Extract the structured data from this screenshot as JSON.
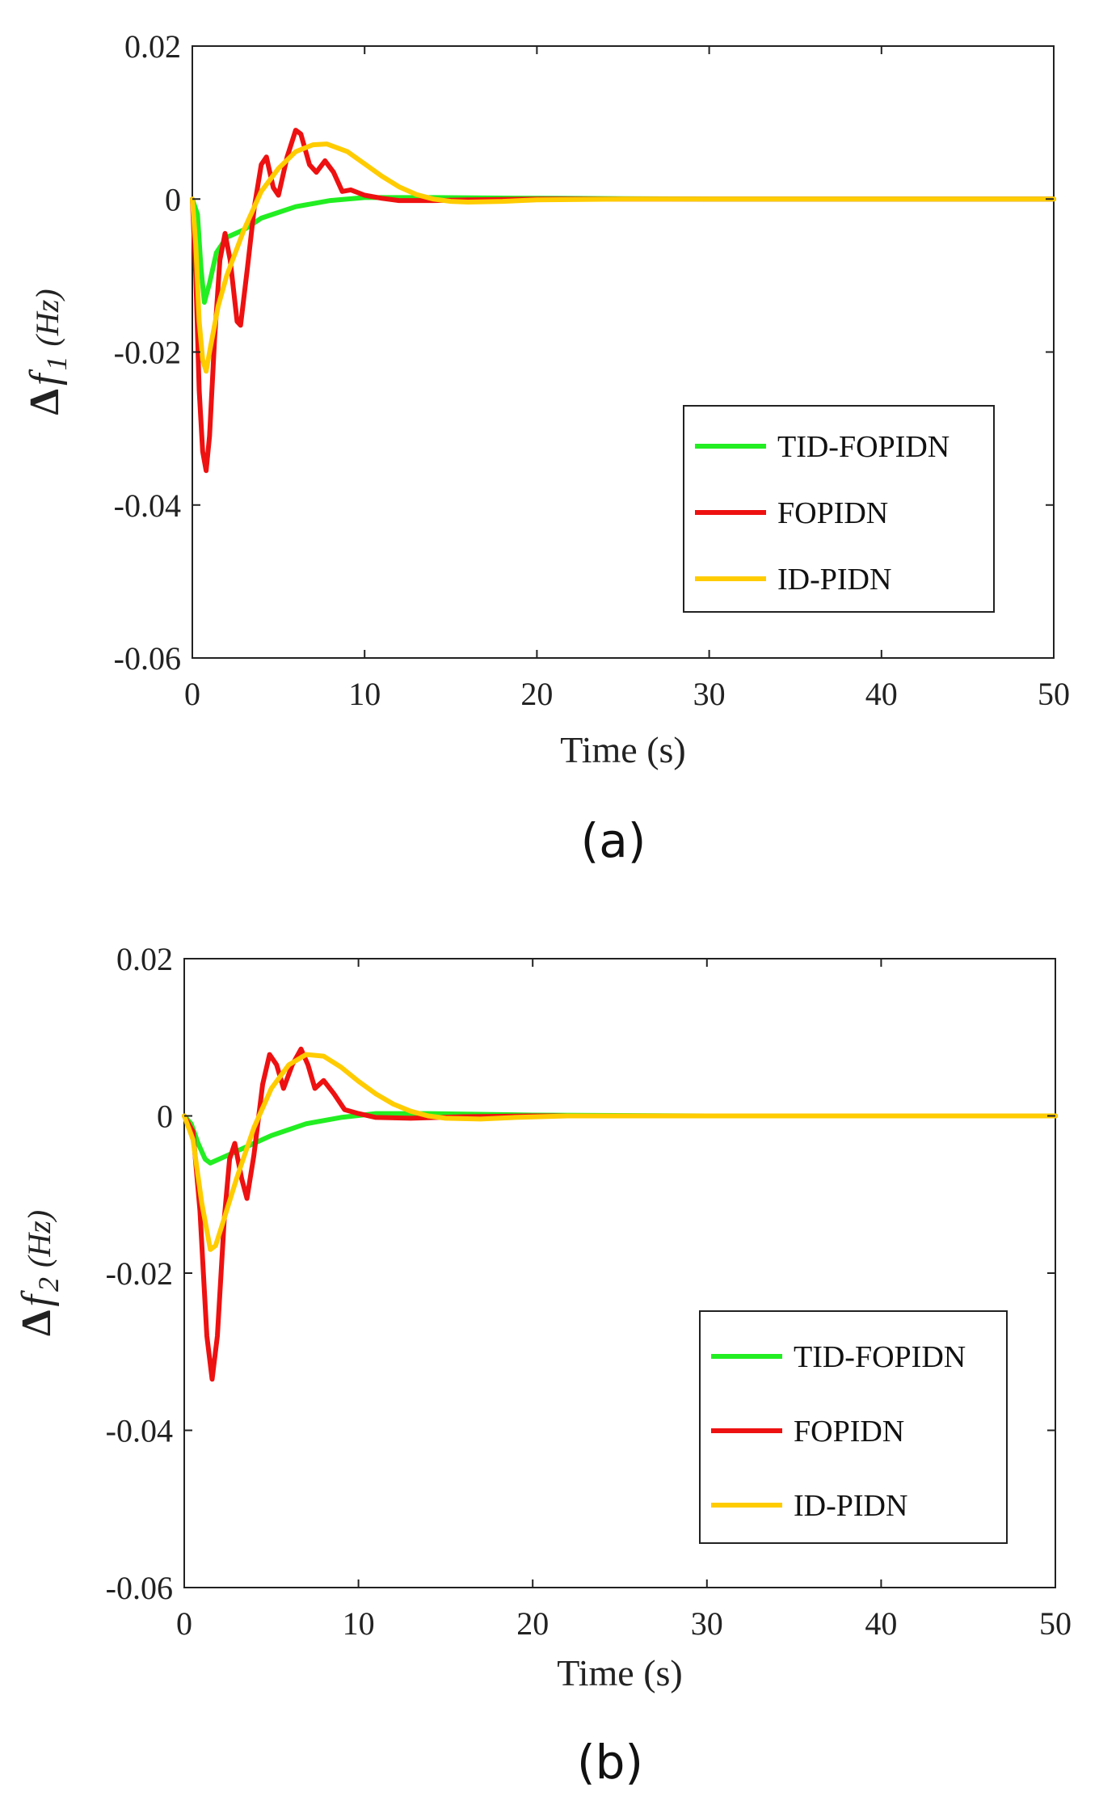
{
  "chart_data": [
    {
      "type": "line",
      "panel_label": "(a)",
      "xlabel": "Time (s)",
      "ylabel": {
        "delta": "Δ",
        "var": "f",
        "sub": "1",
        "unit": "(Hz)"
      },
      "xlim": [
        0,
        50
      ],
      "ylim": [
        -0.06,
        0.02
      ],
      "xticks": [
        0,
        10,
        20,
        30,
        40,
        50
      ],
      "xtick_labels": [
        "0",
        "10",
        "20",
        "30",
        "40",
        "50"
      ],
      "yticks": [
        0.02,
        0,
        -0.02,
        -0.04,
        -0.06
      ],
      "ytick_labels": [
        "0.02",
        "0",
        "-0.02",
        "-0.04",
        "-0.06"
      ],
      "grid": false,
      "legend_position": "right",
      "series": [
        {
          "name": "TID-FOPIDN",
          "color": "#22ee22",
          "points": [
            [
              0,
              0
            ],
            [
              0.3,
              -0.002
            ],
            [
              0.5,
              -0.009
            ],
            [
              0.7,
              -0.0135
            ],
            [
              1.0,
              -0.011
            ],
            [
              1.4,
              -0.007
            ],
            [
              2.0,
              -0.005
            ],
            [
              3.0,
              -0.004
            ],
            [
              4.0,
              -0.0025
            ],
            [
              6.0,
              -0.001
            ],
            [
              8.0,
              -0.0002
            ],
            [
              10.0,
              0.0002
            ],
            [
              14.0,
              0.0002
            ],
            [
              20.0,
              0.0001
            ],
            [
              30.0,
              0
            ],
            [
              40.0,
              0
            ],
            [
              50.0,
              0
            ]
          ]
        },
        {
          "name": "FOPIDN",
          "color": "#ee1111",
          "points": [
            [
              0,
              0
            ],
            [
              0.2,
              -0.01
            ],
            [
              0.4,
              -0.025
            ],
            [
              0.6,
              -0.033
            ],
            [
              0.8,
              -0.0355
            ],
            [
              1.0,
              -0.031
            ],
            [
              1.3,
              -0.018
            ],
            [
              1.6,
              -0.008
            ],
            [
              1.9,
              -0.0045
            ],
            [
              2.2,
              -0.008
            ],
            [
              2.6,
              -0.016
            ],
            [
              2.8,
              -0.0165
            ],
            [
              3.2,
              -0.009
            ],
            [
              3.6,
              -0.001
            ],
            [
              4.0,
              0.0045
            ],
            [
              4.3,
              0.0055
            ],
            [
              4.7,
              0.0015
            ],
            [
              5.0,
              0.0005
            ],
            [
              5.5,
              0.0055
            ],
            [
              6.0,
              0.009
            ],
            [
              6.3,
              0.0085
            ],
            [
              6.8,
              0.0045
            ],
            [
              7.2,
              0.0035
            ],
            [
              7.7,
              0.005
            ],
            [
              8.2,
              0.0035
            ],
            [
              8.7,
              0.001
            ],
            [
              9.2,
              0.0012
            ],
            [
              10.0,
              0.0005
            ],
            [
              11.0,
              0.0001
            ],
            [
              12.0,
              -0.0002
            ],
            [
              14.0,
              -0.0002
            ],
            [
              16.0,
              -0.0001
            ],
            [
              20.0,
              0
            ],
            [
              30.0,
              0
            ],
            [
              50.0,
              0
            ]
          ]
        },
        {
          "name": "ID-PIDN",
          "color": "#ffcc00",
          "points": [
            [
              0,
              0
            ],
            [
              0.2,
              -0.006
            ],
            [
              0.4,
              -0.016
            ],
            [
              0.6,
              -0.021
            ],
            [
              0.8,
              -0.0225
            ],
            [
              1.0,
              -0.02
            ],
            [
              1.5,
              -0.014
            ],
            [
              2.0,
              -0.01
            ],
            [
              3.0,
              -0.004
            ],
            [
              4.0,
              0.001
            ],
            [
              5.0,
              0.004
            ],
            [
              6.0,
              0.0062
            ],
            [
              7.0,
              0.0071
            ],
            [
              7.8,
              0.0072
            ],
            [
              9.0,
              0.0062
            ],
            [
              10.0,
              0.0046
            ],
            [
              11.0,
              0.003
            ],
            [
              12.0,
              0.0016
            ],
            [
              13.0,
              0.0006
            ],
            [
              14.0,
              0.0
            ],
            [
              15.0,
              -0.0003
            ],
            [
              16.0,
              -0.0004
            ],
            [
              18.0,
              -0.0003
            ],
            [
              20.0,
              -0.0001
            ],
            [
              25.0,
              0
            ],
            [
              50.0,
              0
            ]
          ]
        }
      ]
    },
    {
      "type": "line",
      "panel_label": "(b)",
      "xlabel": "Time (s)",
      "ylabel": {
        "delta": "Δ",
        "var": "f",
        "sub": "2",
        "unit": "(Hz)"
      },
      "xlim": [
        0,
        50
      ],
      "ylim": [
        -0.06,
        0.02
      ],
      "xticks": [
        0,
        10,
        20,
        30,
        40,
        50
      ],
      "xtick_labels": [
        "0",
        "10",
        "20",
        "30",
        "40",
        "50"
      ],
      "yticks": [
        0.02,
        0,
        -0.02,
        -0.04,
        -0.06
      ],
      "ytick_labels": [
        "0.02",
        "0",
        "-0.02",
        "-0.04",
        "-0.06"
      ],
      "grid": false,
      "legend_position": "right",
      "series": [
        {
          "name": "TID-FOPIDN",
          "color": "#22ee22",
          "points": [
            [
              0,
              0
            ],
            [
              0.4,
              -0.001
            ],
            [
              0.8,
              -0.0035
            ],
            [
              1.2,
              -0.0055
            ],
            [
              1.5,
              -0.006
            ],
            [
              2.0,
              -0.0055
            ],
            [
              3.0,
              -0.0045
            ],
            [
              4.0,
              -0.0035
            ],
            [
              5.0,
              -0.0025
            ],
            [
              7.0,
              -0.001
            ],
            [
              9.0,
              -0.0002
            ],
            [
              11.0,
              0.0003
            ],
            [
              14.0,
              0.0003
            ],
            [
              20.0,
              0.0001
            ],
            [
              30.0,
              0
            ],
            [
              50.0,
              0
            ]
          ]
        },
        {
          "name": "FOPIDN",
          "color": "#ee1111",
          "points": [
            [
              0,
              0
            ],
            [
              0.5,
              -0.002
            ],
            [
              0.9,
              -0.012
            ],
            [
              1.3,
              -0.028
            ],
            [
              1.6,
              -0.0335
            ],
            [
              1.9,
              -0.028
            ],
            [
              2.3,
              -0.013
            ],
            [
              2.6,
              -0.0055
            ],
            [
              2.9,
              -0.0035
            ],
            [
              3.3,
              -0.008
            ],
            [
              3.6,
              -0.0105
            ],
            [
              4.0,
              -0.005
            ],
            [
              4.5,
              0.004
            ],
            [
              4.9,
              0.0078
            ],
            [
              5.3,
              0.0065
            ],
            [
              5.7,
              0.0035
            ],
            [
              6.2,
              0.0065
            ],
            [
              6.7,
              0.0085
            ],
            [
              7.1,
              0.0065
            ],
            [
              7.5,
              0.0035
            ],
            [
              8.0,
              0.0045
            ],
            [
              8.6,
              0.0028
            ],
            [
              9.2,
              0.0008
            ],
            [
              10.0,
              0.0003
            ],
            [
              11.0,
              -0.0002
            ],
            [
              13.0,
              -0.0003
            ],
            [
              16.0,
              -0.0001
            ],
            [
              20.0,
              0
            ],
            [
              50.0,
              0
            ]
          ]
        },
        {
          "name": "ID-PIDN",
          "color": "#ffcc00",
          "points": [
            [
              0,
              0
            ],
            [
              0.5,
              -0.003
            ],
            [
              1.0,
              -0.011
            ],
            [
              1.5,
              -0.017
            ],
            [
              1.8,
              -0.0165
            ],
            [
              2.3,
              -0.013
            ],
            [
              3.0,
              -0.008
            ],
            [
              4.0,
              -0.0015
            ],
            [
              5.0,
              0.0035
            ],
            [
              6.0,
              0.0065
            ],
            [
              7.0,
              0.0078
            ],
            [
              8.0,
              0.0076
            ],
            [
              9.0,
              0.0062
            ],
            [
              10.0,
              0.0044
            ],
            [
              11.0,
              0.0028
            ],
            [
              12.0,
              0.0015
            ],
            [
              13.0,
              0.0006
            ],
            [
              14.0,
              0.0
            ],
            [
              15.0,
              -0.0003
            ],
            [
              17.0,
              -0.0004
            ],
            [
              19.0,
              -0.0002
            ],
            [
              22.0,
              0
            ],
            [
              50.0,
              0
            ]
          ]
        }
      ]
    }
  ]
}
